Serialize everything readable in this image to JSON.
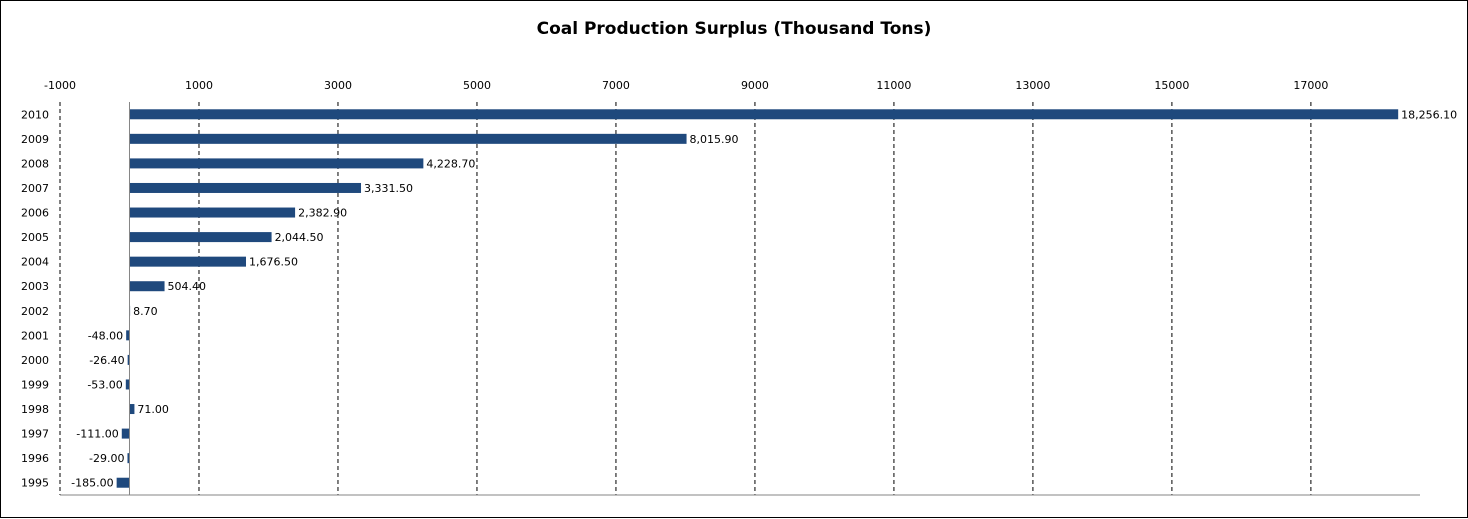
{
  "chart_data": {
    "type": "bar",
    "orientation": "horizontal",
    "title": "Coal Production Surplus (Thousand Tons)",
    "xlabel": "",
    "ylabel": "",
    "categories": [
      "2010",
      "2009",
      "2008",
      "2007",
      "2006",
      "2005",
      "2004",
      "2003",
      "2002",
      "2001",
      "2000",
      "1999",
      "1998",
      "1997",
      "1996",
      "1995"
    ],
    "values": [
      18256.1,
      8015.9,
      4228.7,
      3331.5,
      2382.9,
      2044.5,
      1676.5,
      504.4,
      8.7,
      -48.0,
      -26.4,
      -53.0,
      71.0,
      -111.0,
      -29.0,
      -185.0
    ],
    "data_labels": [
      "18,256.10",
      "8,015.90",
      "4,228.70",
      "3,331.50",
      "2,382.90",
      "2,044.50",
      "1,676.50",
      "504.40",
      "8.70",
      "-48.00",
      "-26.40",
      "-53.00",
      "71.00",
      "-111.00",
      "-29.00",
      "-185.00"
    ],
    "x_ticks": [
      -1000,
      1000,
      3000,
      5000,
      7000,
      9000,
      11000,
      13000,
      15000,
      17000
    ],
    "x_tick_labels": [
      "-1000",
      "1000",
      "3000",
      "5000",
      "7000",
      "9000",
      "11000",
      "13000",
      "15000",
      "17000"
    ],
    "xlim": [
      -1000,
      18570
    ],
    "x_axis_position": "top",
    "grid": "vertical dashed",
    "legend": "none",
    "bar_color": "#1F497D"
  }
}
